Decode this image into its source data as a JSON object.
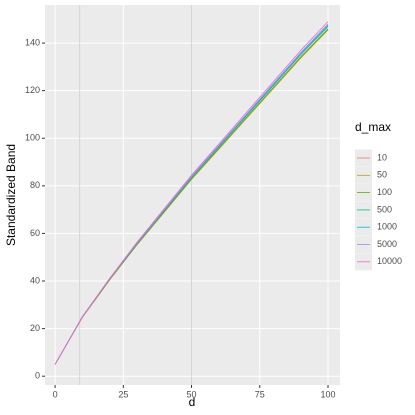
{
  "chart_data": {
    "type": "line",
    "x_label": "d",
    "y_label": "Standardized Band",
    "x": [
      0,
      10,
      20,
      30,
      40,
      50,
      60,
      70,
      80,
      90,
      100
    ],
    "series": [
      {
        "name": "10",
        "color": "#F8766D",
        "values": [
          5,
          24.8,
          40.6,
          55.4,
          69.2,
          83,
          95.8,
          108.5,
          121.2,
          133.9,
          145.8
        ]
      },
      {
        "name": "50",
        "color": "#C49A00",
        "values": [
          5,
          24.7,
          40.5,
          55.2,
          68.9,
          82.7,
          95.4,
          108.2,
          120.9,
          133.7,
          145.5
        ]
      },
      {
        "name": "100",
        "color": "#53B400",
        "values": [
          5,
          24.8,
          40.6,
          55.4,
          69.2,
          83,
          95.8,
          108.6,
          121.4,
          134.2,
          146
        ]
      },
      {
        "name": "500",
        "color": "#00C094",
        "values": [
          5,
          25,
          40.9,
          55.7,
          69.6,
          83.5,
          96.4,
          109.3,
          122.2,
          135.1,
          147
        ]
      },
      {
        "name": "1000",
        "color": "#00B6EB",
        "values": [
          5,
          25,
          41,
          55.8,
          69.8,
          83.7,
          96.7,
          109.6,
          122.6,
          135.5,
          147.5
        ]
      },
      {
        "name": "5000",
        "color": "#A58AFF",
        "values": [
          5,
          25,
          41,
          56,
          70,
          84,
          97,
          110,
          123,
          136,
          148
        ]
      },
      {
        "name": "10000",
        "color": "#FB61D7",
        "values": [
          5,
          25,
          41.1,
          56.3,
          70.4,
          84.5,
          97.6,
          110.7,
          123.8,
          136.9,
          149
        ]
      }
    ],
    "legend_title": "d_max",
    "legend": "right",
    "xlim": [
      -3.7,
      104.4
    ],
    "xticks": [
      0,
      25,
      50,
      75,
      100
    ],
    "ylim": [
      -3.7,
      156
    ],
    "yticks": [
      0,
      20,
      40,
      60,
      80,
      100,
      120,
      140
    ],
    "vlines": [
      9,
      50
    ],
    "vline_color": "#d4d4d4",
    "grid": true
  }
}
